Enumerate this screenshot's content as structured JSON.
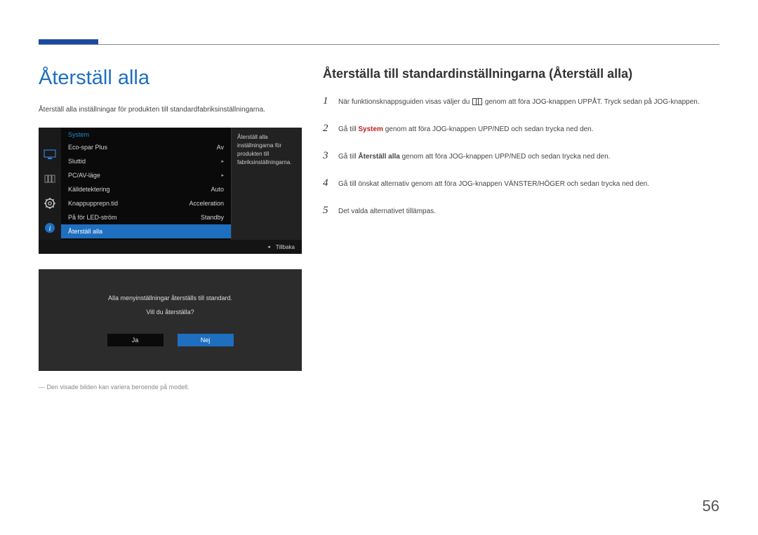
{
  "page_number": "56",
  "title": "Återställ alla",
  "intro_text": "Återställ alla inställningar för produkten till standardfabriksinställningarna.",
  "note_text": "Den visade bilden kan variera beroende på modell.",
  "subtitle": "Återställa till standardinställningarna (Återställ alla)",
  "steps": [
    {
      "pre": "När funktionsknappsguiden visas väljer du ",
      "post": " genom att föra JOG-knappen UPPÅT. Tryck sedan på JOG-knappen."
    },
    {
      "text_a": "Gå till ",
      "hl": "System",
      "text_b": " genom att föra JOG-knappen UPP/NED och sedan trycka ned den.",
      "hl_class": "red bold"
    },
    {
      "text_a": "Gå till ",
      "hl": "Återställ alla",
      "text_b": " genom att föra JOG-knappen UPP/NED och sedan trycka ned den.",
      "hl_class": "bold"
    },
    {
      "text": "Gå till önskat alternativ genom att föra JOG-knappen VÄNSTER/HÖGER och sedan trycka ned den."
    },
    {
      "text": "Det valda alternativet tillämpas."
    }
  ],
  "osd": {
    "header": "System",
    "rows": [
      {
        "label": "Eco-spar Plus",
        "value": "Av"
      },
      {
        "label": "Sluttid",
        "value": "▸"
      },
      {
        "label": "PC/AV-läge",
        "value": "▸"
      },
      {
        "label": "Källdetektering",
        "value": "Auto"
      },
      {
        "label": "Knappupprepn.tid",
        "value": "Acceleration"
      },
      {
        "label": "På för LED-ström",
        "value": "Standby"
      },
      {
        "label": "Återställ alla",
        "value": "",
        "selected": true
      }
    ],
    "side_text": "Återställ alla inställningarna för produkten till fabriksinställningarna.",
    "footer_label": "Tillbaka"
  },
  "confirm": {
    "line1": "Alla menyinställningar återställs till standard.",
    "line2": "Vill du återställa?",
    "yes": "Ja",
    "no": "Nej"
  }
}
